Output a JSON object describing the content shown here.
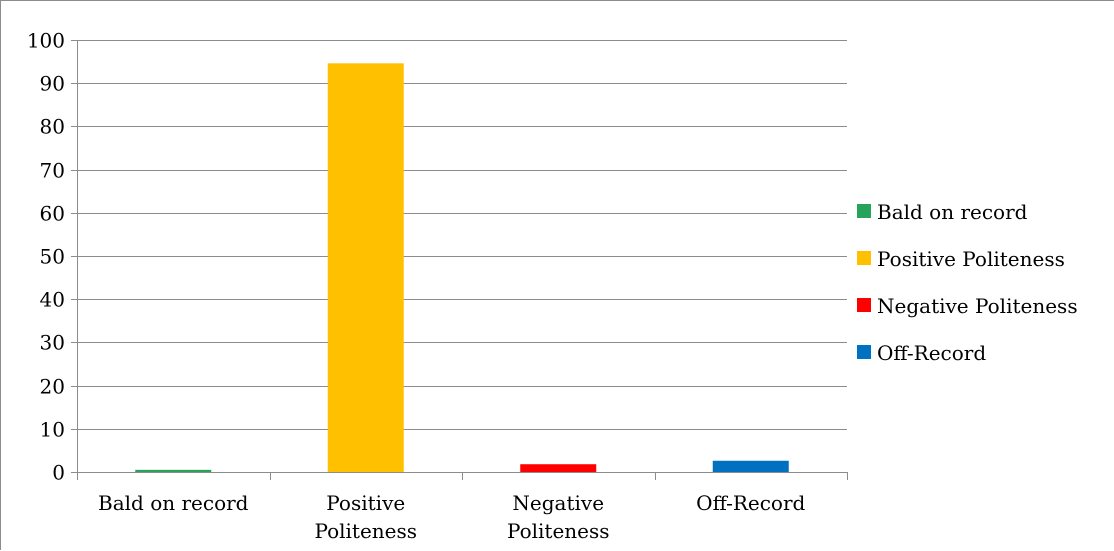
{
  "chart_data": {
    "type": "bar",
    "categories": [
      "Bald on record",
      "Positive Politeness",
      "Negative Politeness",
      "Off-Record"
    ],
    "category_label_lines": [
      [
        "Bald on record"
      ],
      [
        "Positive",
        "Politeness"
      ],
      [
        "Negative",
        "Politeness"
      ],
      [
        "Off-Record"
      ]
    ],
    "values": [
      0.5,
      94.6,
      1.8,
      2.6
    ],
    "colors": [
      "#27a35b",
      "#ffc000",
      "#ff0000",
      "#0070c0"
    ],
    "ylim": [
      0,
      100
    ],
    "yticks": [
      0,
      10,
      20,
      30,
      40,
      50,
      60,
      70,
      80,
      90,
      100
    ],
    "grid": true,
    "legend": {
      "position": "right",
      "entries": [
        "Bald on record",
        "Positive Politeness",
        "Negative Politeness",
        "Off-Record"
      ]
    }
  }
}
